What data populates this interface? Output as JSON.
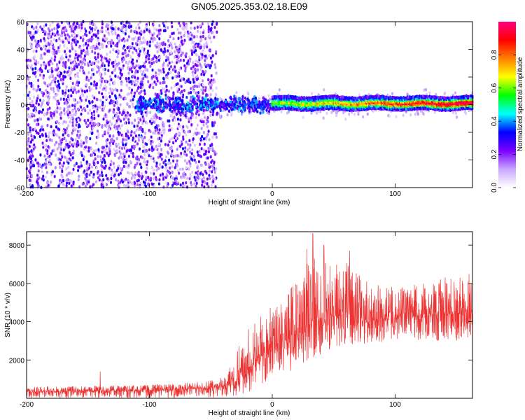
{
  "title": "GN05.2025.353.02.18.E09",
  "chart_data": [
    {
      "type": "heatmap",
      "xlabel": "Height of straight line (km)",
      "ylabel": "Frequency (Hz)",
      "xlim": [
        -200,
        163
      ],
      "ylim": [
        -60,
        60
      ],
      "xticks": [
        -200,
        -100,
        0,
        100
      ],
      "yticks": [
        -60,
        -40,
        -20,
        0,
        20,
        40,
        60
      ],
      "colorbar": {
        "label": "Normalized spectral amplitude",
        "range": [
          0,
          1
        ],
        "ticks": [
          "0.0",
          "0.2",
          "0.4",
          "0.6",
          "0.8"
        ],
        "colors": [
          "#ffffff",
          "#c9a7ff",
          "#7a00ff",
          "#0000ff",
          "#00ffff",
          "#00ff00",
          "#ffff00",
          "#ff8000",
          "#ff0000",
          "#ff0080"
        ]
      },
      "regions": [
        {
          "x_range": [
            -200,
            -45
          ],
          "frequency_range": [
            -60,
            60
          ],
          "amplitude_range": [
            0.05,
            0.35
          ],
          "description_color": "scattered purple noise"
        },
        {
          "x_range": [
            -45,
            163
          ],
          "frequency_range": [
            -60,
            60
          ],
          "amplitude_range": [
            0.0,
            0.05
          ],
          "description_color": "sparse light noise"
        },
        {
          "x_range": [
            -110,
            0
          ],
          "center_frequency": 0,
          "band_width_hz": 12,
          "amplitude_range": [
            0.2,
            0.5
          ]
        },
        {
          "x_range": [
            0,
            163
          ],
          "center_frequency": 1,
          "band_width_hz": 8,
          "amplitude_range": [
            0.4,
            0.95
          ]
        }
      ]
    },
    {
      "type": "line",
      "xlabel": "Height of straight line (km)",
      "ylabel": "SNR (10 * v/v)",
      "xlim": [
        -200,
        163
      ],
      "ylim": [
        0,
        8700
      ],
      "xticks": [
        -200,
        -100,
        0,
        100
      ],
      "yticks": [
        2000,
        4000,
        6000,
        8000
      ],
      "color": "#ee3333",
      "envelope": {
        "x": [
          -200,
          -150,
          -100,
          -60,
          -40,
          -30,
          -20,
          -10,
          0,
          10,
          20,
          30,
          40,
          50,
          60,
          70,
          80,
          100,
          120,
          140,
          163
        ],
        "mean": [
          350,
          380,
          420,
          500,
          600,
          900,
          1500,
          2200,
          2700,
          3100,
          3500,
          3900,
          4200,
          4300,
          4300,
          4200,
          4100,
          4200,
          4300,
          4400,
          4500
        ],
        "upper": [
          600,
          650,
          700,
          850,
          1100,
          2500,
          3700,
          4300,
          4800,
          5200,
          6500,
          7300,
          7800,
          7400,
          7100,
          6500,
          6000,
          5800,
          6000,
          6300,
          6600
        ],
        "lower": [
          0,
          0,
          0,
          0,
          50,
          100,
          300,
          600,
          900,
          1200,
          1600,
          2000,
          2300,
          2600,
          2700,
          2800,
          2900,
          3000,
          3000,
          3000,
          3000
        ]
      },
      "spikes": [
        {
          "x": -140,
          "y": 1400
        },
        {
          "x": 33,
          "y": 8600
        },
        {
          "x": 28,
          "y": 7800
        },
        {
          "x": 42,
          "y": 8000
        },
        {
          "x": 63,
          "y": 7700
        }
      ]
    }
  ]
}
